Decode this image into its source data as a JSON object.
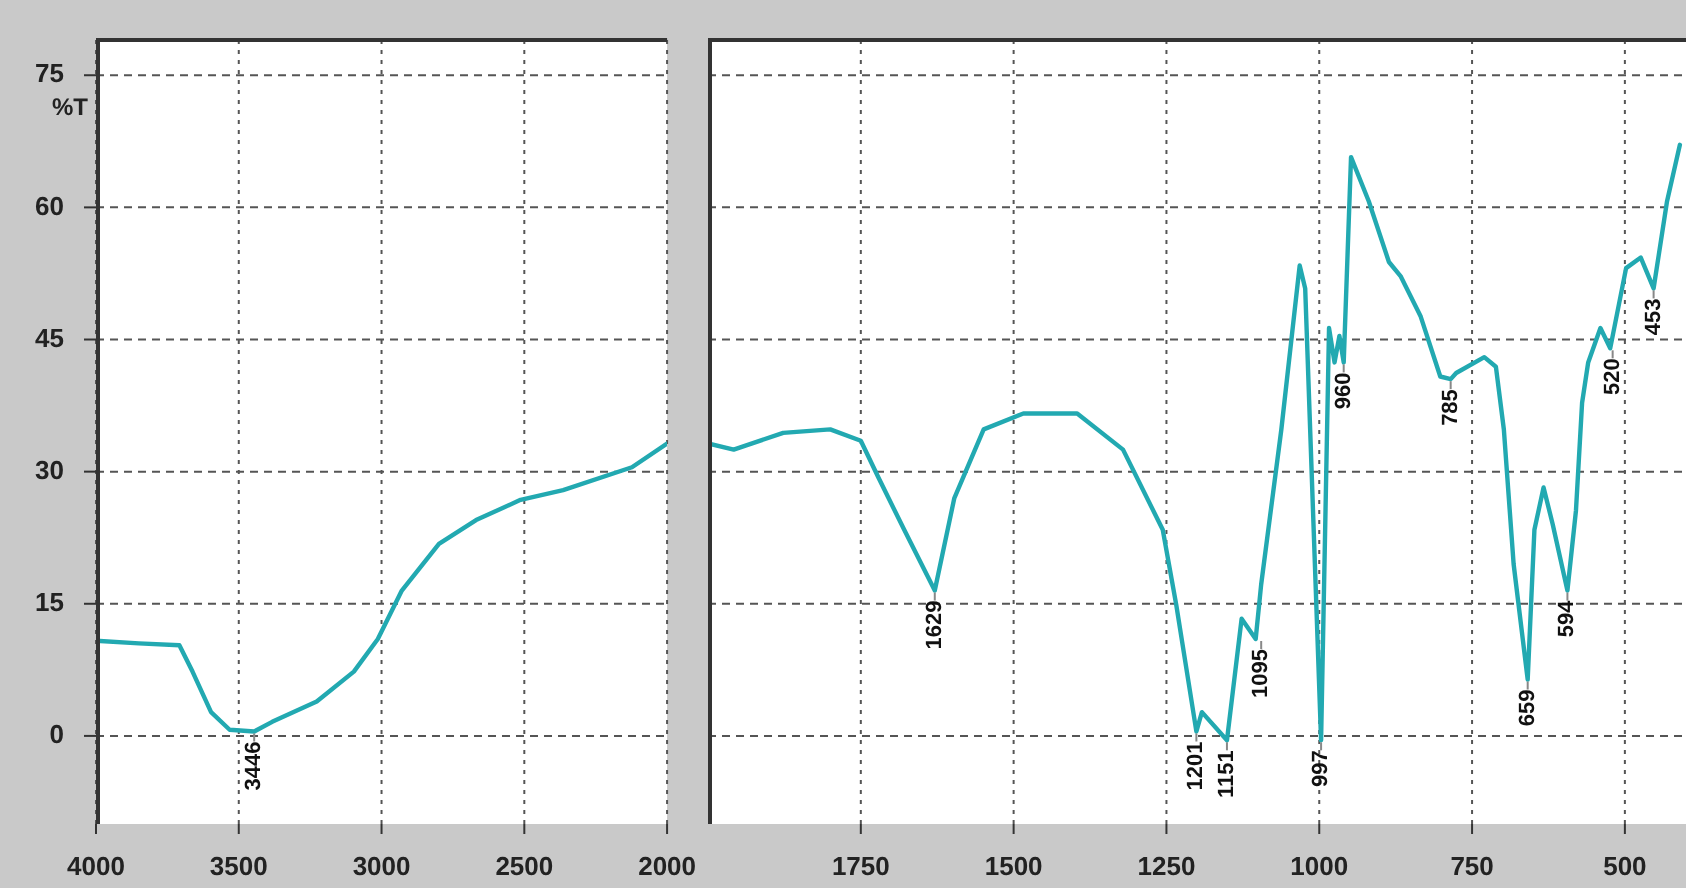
{
  "chart_data": [
    {
      "type": "line",
      "ylabel": "%T",
      "xlim": [
        4000,
        2000
      ],
      "xticks": [
        4000,
        3500,
        3000,
        2500,
        2000
      ],
      "ylim": [
        -10,
        79
      ],
      "yticks": [
        0,
        15,
        30,
        45,
        60,
        75
      ],
      "grid": true,
      "legend": false,
      "marker": "none",
      "line_style": "solid",
      "series": [
        {
          "color": "#22a9b1",
          "x": [
            4000,
            3850,
            3708,
            3662,
            3597,
            3532,
            3446,
            3383,
            3227,
            3097,
            3013,
            2929,
            2799,
            2669,
            2513,
            2364,
            2123,
            2000
          ],
          "values": [
            10.8,
            10.5,
            10.3,
            7.3,
            2.7,
            0.7,
            0.5,
            1.6,
            3.9,
            7.3,
            11,
            16.5,
            21.8,
            24.5,
            26.8,
            27.9,
            30.5,
            33.2
          ]
        }
      ],
      "annotations": [
        {
          "text": "3446",
          "x": 3446,
          "y": 0.5
        }
      ]
    },
    {
      "type": "line",
      "tick_labels": "x",
      "xlim": [
        2000,
        400
      ],
      "xticks": [
        1750,
        1500,
        1250,
        1000,
        750,
        500
      ],
      "ylim": [
        -10,
        79
      ],
      "yticks": [
        0,
        15,
        30,
        45,
        60,
        75
      ],
      "grid": true,
      "legend": false,
      "marker": "none",
      "line_style": "solid",
      "series": [
        {
          "color": "#22a9b1",
          "x": [
            2000,
            1958,
            1877,
            1800,
            1750,
            1721,
            1679,
            1629,
            1597,
            1549,
            1484,
            1396,
            1321,
            1256,
            1234,
            1201,
            1192,
            1151,
            1127,
            1104,
            1095,
            1062,
            1032,
            1023,
            997,
            984,
            975,
            967,
            960,
            948,
            919,
            886,
            867,
            834,
            802,
            785,
            776,
            730,
            711,
            698,
            682,
            659,
            648,
            633,
            618,
            594,
            580,
            570,
            560,
            540,
            524,
            498,
            474,
            453,
            431,
            410
          ],
          "values": [
            33.2,
            32.5,
            34.4,
            34.8,
            33.5,
            29.3,
            23.4,
            16.5,
            27,
            34.8,
            36.6,
            36.6,
            32.5,
            23.4,
            14.9,
            0.5,
            2.7,
            -0.5,
            13.3,
            11,
            17.2,
            34.8,
            53.4,
            50.8,
            -0.5,
            46.3,
            42.4,
            45.4,
            42.4,
            65.7,
            60.7,
            53.8,
            52.2,
            47.6,
            40.8,
            40.5,
            41.2,
            43,
            41.9,
            34.8,
            19.5,
            6.4,
            23.4,
            28.2,
            24,
            16.5,
            25.6,
            37.8,
            42.4,
            46.3,
            44,
            53.1,
            54.3,
            50.8,
            60.7,
            67.1
          ]
        }
      ],
      "annotations": [
        {
          "text": "1629",
          "x": 1629,
          "y": 16.5
        },
        {
          "text": "1201",
          "x": 1201,
          "y": 0.5
        },
        {
          "text": "1151",
          "x": 1151,
          "y": -0.5
        },
        {
          "text": "1095",
          "x": 1095,
          "y": 11
        },
        {
          "text": "997",
          "x": 997,
          "y": -0.5
        },
        {
          "text": "960",
          "x": 960,
          "y": 42.4
        },
        {
          "text": "785",
          "x": 785,
          "y": 40.5
        },
        {
          "text": "659",
          "x": 659,
          "y": 6.4
        },
        {
          "text": "594",
          "x": 594,
          "y": 16.5
        },
        {
          "text": "520",
          "x": 520,
          "y": 44
        },
        {
          "text": "453",
          "x": 453,
          "y": 50.8
        }
      ]
    }
  ]
}
